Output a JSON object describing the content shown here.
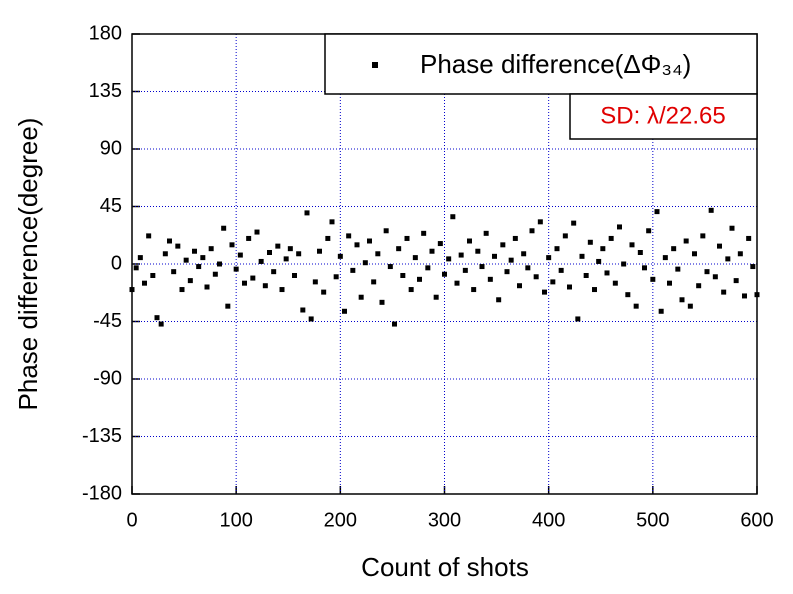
{
  "chart_data": {
    "type": "scatter",
    "xlabel": "Count of shots",
    "ylabel": "Phase difference(degree)",
    "annotation": "SD: λ/22.65",
    "annotation_color": "#e00000",
    "xlim": [
      0,
      600
    ],
    "xticks": [
      0,
      100,
      200,
      300,
      400,
      500,
      600
    ],
    "ylim": [
      -180,
      180
    ],
    "yticks": [
      -180,
      -135,
      -90,
      -45,
      0,
      45,
      90,
      135,
      180
    ],
    "grid": true,
    "grid_color": "#0000cc",
    "legend": "upper right",
    "series": [
      {
        "name": "Phase difference(ΔΦ₃₄)",
        "color": "#000000",
        "x": [
          0,
          4,
          8,
          12,
          16,
          20,
          24,
          28,
          32,
          36,
          40,
          44,
          48,
          52,
          56,
          60,
          64,
          68,
          72,
          76,
          80,
          84,
          88,
          92,
          96,
          100,
          104,
          108,
          112,
          116,
          120,
          124,
          128,
          132,
          136,
          140,
          144,
          148,
          152,
          156,
          160,
          164,
          168,
          172,
          176,
          180,
          184,
          188,
          192,
          196,
          200,
          204,
          208,
          212,
          216,
          220,
          224,
          228,
          232,
          236,
          240,
          244,
          248,
          252,
          256,
          260,
          264,
          268,
          272,
          276,
          280,
          284,
          288,
          292,
          296,
          300,
          304,
          308,
          312,
          316,
          320,
          324,
          328,
          332,
          336,
          340,
          344,
          348,
          352,
          356,
          360,
          364,
          368,
          372,
          376,
          380,
          384,
          388,
          392,
          396,
          400,
          404,
          408,
          412,
          416,
          420,
          424,
          428,
          432,
          436,
          440,
          444,
          448,
          452,
          456,
          460,
          464,
          468,
          472,
          476,
          480,
          484,
          488,
          492,
          496,
          500,
          504,
          508,
          512,
          516,
          520,
          524,
          528,
          532,
          536,
          540,
          544,
          548,
          552,
          556,
          560,
          564,
          568,
          572,
          576,
          580,
          584,
          588,
          592,
          596,
          600
        ],
        "values": [
          -20,
          -3,
          5,
          -15,
          22,
          -9,
          -42,
          -47,
          8,
          18,
          -6,
          14,
          -20,
          3,
          -13,
          10,
          -2,
          5,
          -18,
          12,
          -8,
          0,
          28,
          -33,
          15,
          -4,
          7,
          -15,
          20,
          -11,
          25,
          2,
          -17,
          9,
          -6,
          14,
          -20,
          4,
          12,
          -9,
          8,
          -36,
          40,
          -43,
          -14,
          10,
          -22,
          20,
          33,
          -10,
          6,
          -37,
          22,
          -5,
          15,
          -26,
          1,
          18,
          -14,
          8,
          -30,
          26,
          -2,
          -47,
          12,
          -9,
          20,
          -20,
          5,
          -12,
          24,
          -3,
          10,
          -26,
          16,
          -8,
          4,
          37,
          -15,
          7,
          -5,
          18,
          -20,
          10,
          -2,
          24,
          -12,
          6,
          -28,
          15,
          -6,
          3,
          20,
          -17,
          8,
          -3,
          26,
          -10,
          33,
          -22,
          5,
          -14,
          12,
          -5,
          22,
          -18,
          32,
          -43,
          6,
          -9,
          17,
          -20,
          2,
          12,
          -7,
          20,
          -15,
          29,
          0,
          -24,
          15,
          -33,
          9,
          -3,
          26,
          -12,
          41,
          -37,
          5,
          -15,
          12,
          -4,
          -28,
          18,
          -33,
          8,
          -17,
          22,
          -6,
          42,
          -10,
          14,
          -22,
          4,
          28,
          -13,
          8,
          -25,
          20,
          -2,
          -24
        ]
      }
    ]
  }
}
